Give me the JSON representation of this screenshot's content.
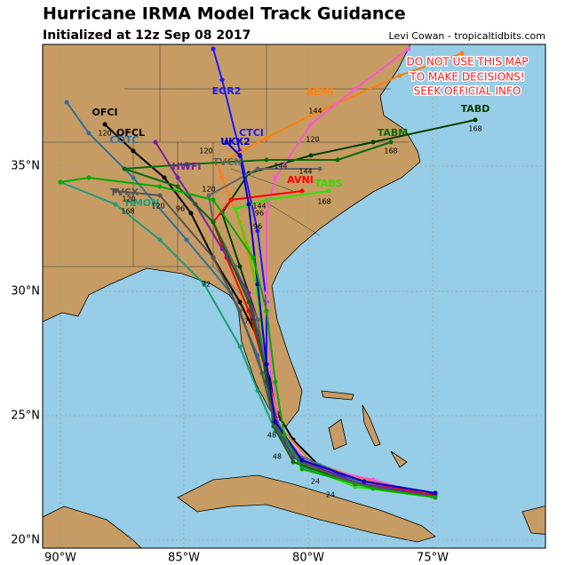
{
  "header": {
    "title": "Hurricane IRMA Model Track Guidance",
    "subtitle": "Initialized at 12z Sep 08 2017",
    "credit": "Levi Cowan - tropicaltidbits.com"
  },
  "warning": [
    "DO NOT USE THIS MAP",
    "TO MAKE DECISIONS!",
    "SEEK OFFICIAL INFO"
  ],
  "axes": {
    "x_labels": [
      "90°W",
      "85°W",
      "80°W",
      "75°W"
    ],
    "y_labels": [
      "20°N",
      "25°N",
      "30°N",
      "35°N"
    ]
  },
  "models": [
    "OFCI",
    "OFCL",
    "COTC",
    "EGR2",
    "CTCI",
    "UKX2",
    "AEMI",
    "TABD",
    "TABM",
    "HWFI",
    "TVCN",
    "AVNI",
    "TABS",
    "TVCX",
    "HMON"
  ],
  "hours": [
    "168",
    "144",
    "120",
    "144",
    "120",
    "168",
    "120",
    "144",
    "120",
    "96",
    "120",
    "144",
    "168",
    "96",
    "72",
    "72",
    "48",
    "48",
    "24",
    "24",
    "120",
    "168",
    "96"
  ]
}
